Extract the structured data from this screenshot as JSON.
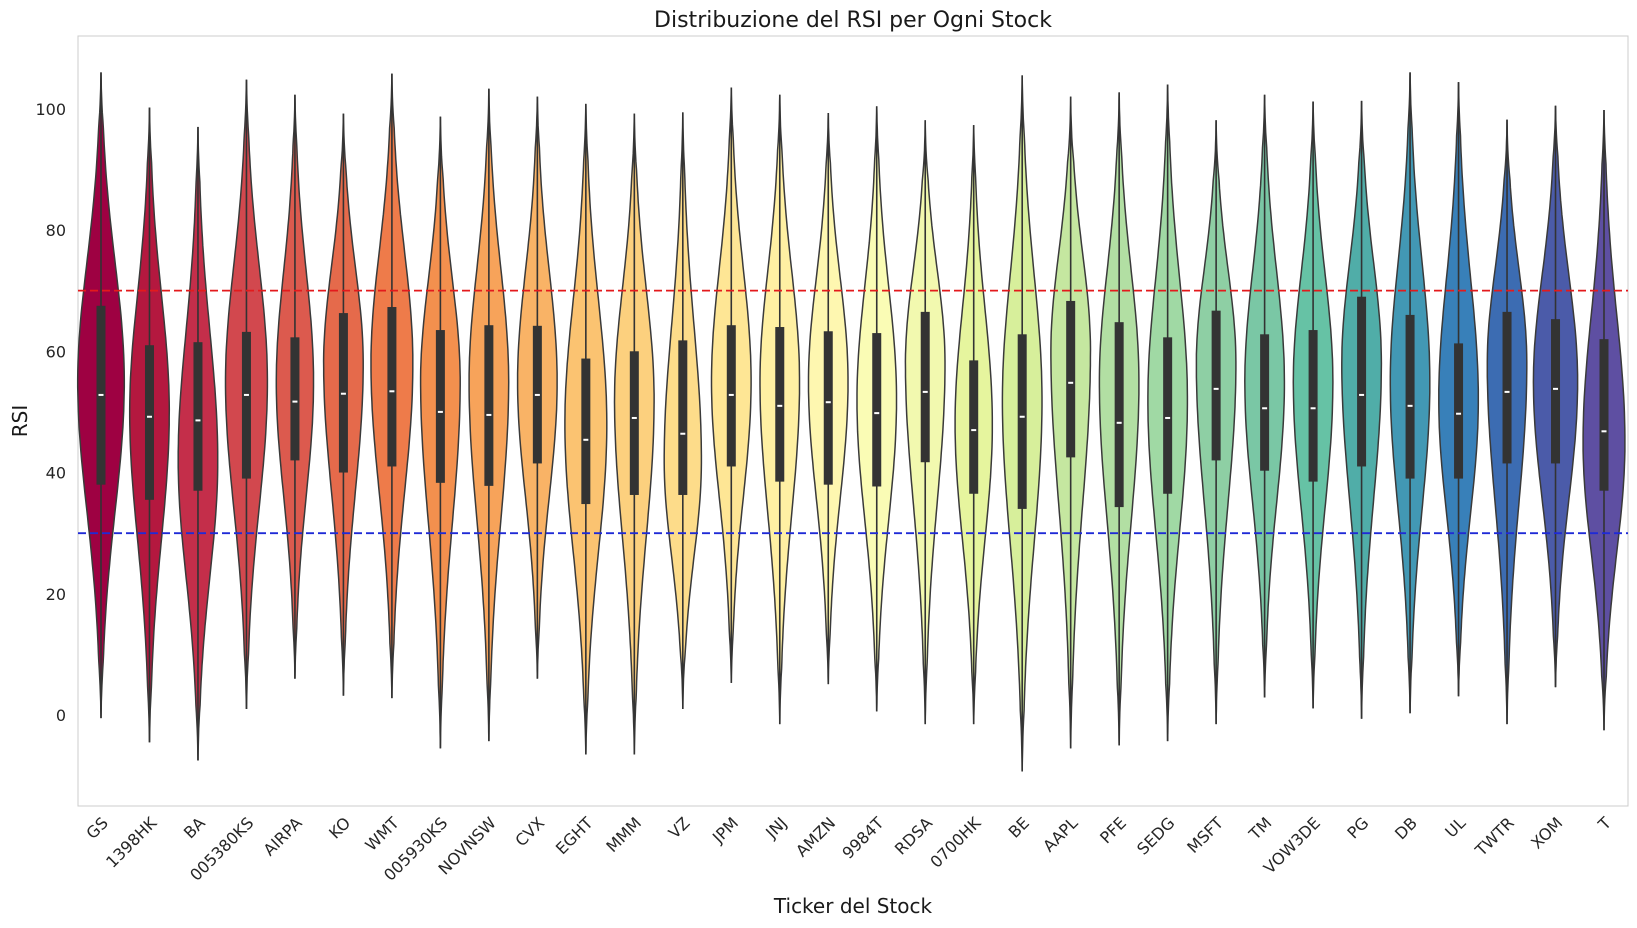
{
  "chart_data": {
    "type": "violin",
    "title": "Distribuzione del RSI per Ogni Stock",
    "xlabel": "Ticker del Stock",
    "ylabel": "RSI",
    "ylim": [
      -15,
      112
    ],
    "yticks": [
      0,
      20,
      40,
      60,
      80,
      100
    ],
    "grid": false,
    "reference_lines": [
      {
        "y": 70,
        "color": "#e31a1c",
        "style": "dashed"
      },
      {
        "y": 30,
        "color": "#1f2ad6",
        "style": "dashed"
      }
    ],
    "categories": [
      "GS",
      "1398HK",
      "BA",
      "005380KS",
      "AIRPA",
      "KO",
      "WMT",
      "005930KS",
      "NOVNSW",
      "CVX",
      "EGHT",
      "MMM",
      "VZ",
      "JPM",
      "JNJ",
      "AMZN",
      "9984T",
      "RDSA",
      "0700HK",
      "BE",
      "AAPL",
      "PFE",
      "SEDG",
      "MSFT",
      "TM",
      "VOW3DE",
      "PG",
      "DB",
      "UL",
      "TWTR",
      "XOM",
      "T"
    ],
    "colors": [
      "#9e0142",
      "#b4183f",
      "#c42e4a",
      "#d2484e",
      "#dc5a4e",
      "#e56a4b",
      "#ee7b4a",
      "#f3904e",
      "#f7a35a",
      "#f9b366",
      "#fbc371",
      "#fcd07e",
      "#fddc8a",
      "#fee695",
      "#fff0a3",
      "#fef7b0",
      "#fafcb5",
      "#f2f9af",
      "#e6f59e",
      "#d7ef9b",
      "#c5e7a0",
      "#b2dfa3",
      "#a0d9a4",
      "#8ecfa4",
      "#7ac7a5",
      "#66c2a5",
      "#50ada8",
      "#4298b4",
      "#3880b9",
      "#3c6cb2",
      "#4b5ba9",
      "#5e4fa2"
    ],
    "stats": [
      {
        "min": -0.5,
        "q1": 38,
        "median": 52.8,
        "q3": 67.5,
        "max": 106,
        "peak": 55,
        "width": 1.0,
        "skew": 0
      },
      {
        "min": -4.5,
        "q1": 35.5,
        "median": 49.2,
        "q3": 61,
        "max": 100.2,
        "peak": 50,
        "width": 0.85,
        "skew": 0
      },
      {
        "min": -7.5,
        "q1": 37,
        "median": 48.6,
        "q3": 61.5,
        "max": 97,
        "peak": 42,
        "width": 0.85,
        "skew": 0
      },
      {
        "min": 1,
        "q1": 39,
        "median": 52.8,
        "q3": 63.2,
        "max": 104.8,
        "peak": 55,
        "width": 0.9,
        "skew": 0
      },
      {
        "min": 6,
        "q1": 42,
        "median": 51.7,
        "q3": 62.3,
        "max": 102.3,
        "peak": 55,
        "width": 0.8,
        "skew": 0
      },
      {
        "min": 3.2,
        "q1": 40,
        "median": 53,
        "q3": 66.3,
        "max": 99.2,
        "peak": 58,
        "width": 0.85,
        "skew": 0
      },
      {
        "min": 2.8,
        "q1": 41,
        "median": 53.4,
        "q3": 67.3,
        "max": 105.8,
        "peak": 58,
        "width": 0.9,
        "skew": 0
      },
      {
        "min": -5.5,
        "q1": 38.3,
        "median": 50,
        "q3": 63.5,
        "max": 98.7,
        "peak": 55,
        "width": 0.85,
        "skew": 0
      },
      {
        "min": -4.3,
        "q1": 37.8,
        "median": 49.5,
        "q3": 64.3,
        "max": 103.3,
        "peak": 55,
        "width": 0.85,
        "skew": 0
      },
      {
        "min": 6,
        "q1": 41.5,
        "median": 52.8,
        "q3": 64.2,
        "max": 102,
        "peak": 55,
        "width": 0.85,
        "skew": 0
      },
      {
        "min": -6.5,
        "q1": 34.8,
        "median": 45.4,
        "q3": 58.8,
        "max": 100.8,
        "peak": 48,
        "width": 0.9,
        "skew": 0
      },
      {
        "min": -6.5,
        "q1": 36.3,
        "median": 49,
        "q3": 60,
        "max": 99.2,
        "peak": 52,
        "width": 0.85,
        "skew": 0
      },
      {
        "min": 1,
        "q1": 36.3,
        "median": 46.4,
        "q3": 61.8,
        "max": 99.4,
        "peak": 42,
        "width": 0.8,
        "skew": 0
      },
      {
        "min": 5.3,
        "q1": 41,
        "median": 52.8,
        "q3": 64.3,
        "max": 103.5,
        "peak": 55,
        "width": 0.85,
        "skew": 0
      },
      {
        "min": -1.5,
        "q1": 38.5,
        "median": 51,
        "q3": 64,
        "max": 102.3,
        "peak": 55,
        "width": 0.85,
        "skew": 0
      },
      {
        "min": 5.1,
        "q1": 38,
        "median": 51.6,
        "q3": 63.3,
        "max": 99.3,
        "peak": 55,
        "width": 0.85,
        "skew": 0
      },
      {
        "min": 0.6,
        "q1": 37.7,
        "median": 49.8,
        "q3": 63,
        "max": 100.4,
        "peak": 52,
        "width": 0.85,
        "skew": 0
      },
      {
        "min": -1.5,
        "q1": 41.7,
        "median": 53.3,
        "q3": 66.5,
        "max": 98.1,
        "peak": 58,
        "width": 0.85,
        "skew": 0
      },
      {
        "min": -1.5,
        "q1": 36.5,
        "median": 47,
        "q3": 58.5,
        "max": 97.3,
        "peak": 48,
        "width": 0.8,
        "skew": 0
      },
      {
        "min": -9.3,
        "q1": 34,
        "median": 49.2,
        "q3": 62.8,
        "max": 105.5,
        "peak": 52,
        "width": 0.85,
        "skew": 0
      },
      {
        "min": -5.5,
        "q1": 42.5,
        "median": 54.8,
        "q3": 68.3,
        "max": 102,
        "peak": 60,
        "width": 0.85,
        "skew": 0
      },
      {
        "min": -5,
        "q1": 34.3,
        "median": 48.2,
        "q3": 64.8,
        "max": 102.7,
        "peak": 55,
        "width": 0.85,
        "skew": 0
      },
      {
        "min": -4.3,
        "q1": 36.5,
        "median": 49,
        "q3": 62.3,
        "max": 104,
        "peak": 52,
        "width": 0.85,
        "skew": 0
      },
      {
        "min": -1.5,
        "q1": 42,
        "median": 53.8,
        "q3": 66.7,
        "max": 98.1,
        "peak": 58,
        "width": 0.85,
        "skew": 0
      },
      {
        "min": 2.9,
        "q1": 40.3,
        "median": 50.6,
        "q3": 62.8,
        "max": 102.3,
        "peak": 55,
        "width": 0.85,
        "skew": 0
      },
      {
        "min": 1.1,
        "q1": 38.5,
        "median": 50.6,
        "q3": 63.5,
        "max": 101.2,
        "peak": 55,
        "width": 0.85,
        "skew": 0
      },
      {
        "min": -0.6,
        "q1": 41,
        "median": 52.8,
        "q3": 69,
        "max": 101.3,
        "peak": 58,
        "width": 0.85,
        "skew": 0
      },
      {
        "min": 0.3,
        "q1": 39,
        "median": 51,
        "q3": 66,
        "max": 106,
        "peak": 55,
        "width": 0.85,
        "skew": 0
      },
      {
        "min": 3.1,
        "q1": 39,
        "median": 49.7,
        "q3": 61.3,
        "max": 104.4,
        "peak": 52,
        "width": 0.85,
        "skew": 0
      },
      {
        "min": -1.5,
        "q1": 41.5,
        "median": 53.3,
        "q3": 66.5,
        "max": 98.2,
        "peak": 58,
        "width": 0.85,
        "skew": 0
      },
      {
        "min": 4.6,
        "q1": 41.5,
        "median": 53.8,
        "q3": 65.3,
        "max": 100.5,
        "peak": 55,
        "width": 0.95,
        "skew": 0
      },
      {
        "min": -2.5,
        "q1": 37,
        "median": 46.8,
        "q3": 62,
        "max": 99.8,
        "peak": 45,
        "width": 0.9,
        "skew": 0
      }
    ]
  }
}
